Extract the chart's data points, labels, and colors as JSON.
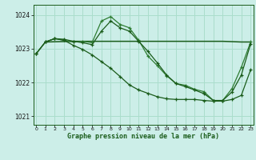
{
  "title": "Graphe pression niveau de la mer (hPa)",
  "background_color": "#cceee8",
  "grid_color": "#aaddcc",
  "line_color_dark": "#1a5c1a",
  "line_color_mid": "#2e7d32",
  "xlim": [
    0,
    23
  ],
  "ylim": [
    1020.75,
    1024.3
  ],
  "yticks": [
    1021,
    1022,
    1023,
    1024
  ],
  "xticks": [
    0,
    1,
    2,
    3,
    4,
    5,
    6,
    7,
    8,
    9,
    10,
    11,
    12,
    13,
    14,
    15,
    16,
    17,
    18,
    19,
    20,
    21,
    22,
    23
  ],
  "series1_x": [
    0,
    1,
    2,
    3,
    4,
    5,
    6,
    7,
    8,
    9,
    10,
    11,
    12,
    13,
    14,
    15,
    16,
    17,
    18,
    19,
    20,
    21,
    22,
    23
  ],
  "series1_y": [
    1022.85,
    1023.2,
    1023.3,
    1023.25,
    1023.2,
    1023.22,
    1023.18,
    1023.82,
    1023.95,
    1023.72,
    1023.62,
    1023.25,
    1022.78,
    1022.5,
    1022.2,
    1021.97,
    1021.92,
    1021.8,
    1021.73,
    1021.47,
    1021.47,
    1021.82,
    1022.45,
    1023.2
  ],
  "series2_x": [
    0,
    1,
    2,
    3,
    4,
    5,
    6,
    7,
    8,
    9,
    10,
    11,
    12,
    13,
    14,
    15,
    16,
    17,
    18,
    19,
    20,
    21,
    22,
    23
  ],
  "series2_y": [
    1022.85,
    1023.2,
    1023.3,
    1023.28,
    1023.22,
    1023.18,
    1023.12,
    1023.52,
    1023.82,
    1023.62,
    1023.52,
    1023.22,
    1022.92,
    1022.58,
    1022.22,
    1021.97,
    1021.88,
    1021.78,
    1021.67,
    1021.47,
    1021.47,
    1021.72,
    1022.22,
    1023.15
  ],
  "series3_x": [
    1,
    4,
    10,
    19,
    20,
    22,
    23
  ],
  "series3_y": [
    1023.2,
    1023.22,
    1023.22,
    1023.22,
    1023.22,
    1023.2,
    1023.2
  ],
  "series4_x": [
    0,
    1,
    2,
    3,
    4,
    5,
    6,
    7,
    8,
    9,
    10,
    11,
    12,
    13,
    14,
    15,
    16,
    17,
    18,
    19,
    20,
    21,
    22,
    23
  ],
  "series4_y": [
    1022.85,
    1023.2,
    1023.3,
    1023.25,
    1023.1,
    1022.98,
    1022.82,
    1022.62,
    1022.42,
    1022.18,
    1021.93,
    1021.78,
    1021.68,
    1021.58,
    1021.52,
    1021.5,
    1021.5,
    1021.5,
    1021.47,
    1021.45,
    1021.45,
    1021.5,
    1021.62,
    1022.38
  ]
}
